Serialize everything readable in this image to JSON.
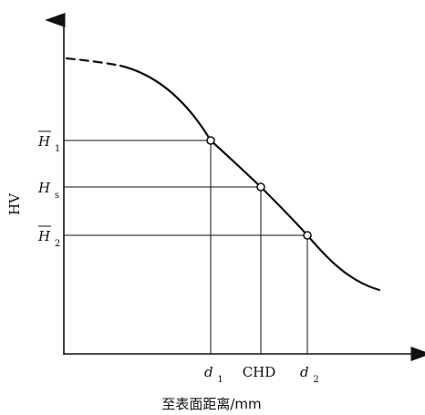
{
  "diagram": {
    "y_axis_label": "HV",
    "x_axis_label": "至表面距离/mm",
    "y_ticks": {
      "h1": {
        "main": "H",
        "sub": "1"
      },
      "hs": {
        "main": "H",
        "sub": "s"
      },
      "h2": {
        "main": "H",
        "sub": "2"
      }
    },
    "x_ticks": {
      "d1": {
        "main": "d",
        "sub": "1"
      },
      "chd": "CHD",
      "d2": {
        "main": "d",
        "sub": "2"
      }
    }
  }
}
